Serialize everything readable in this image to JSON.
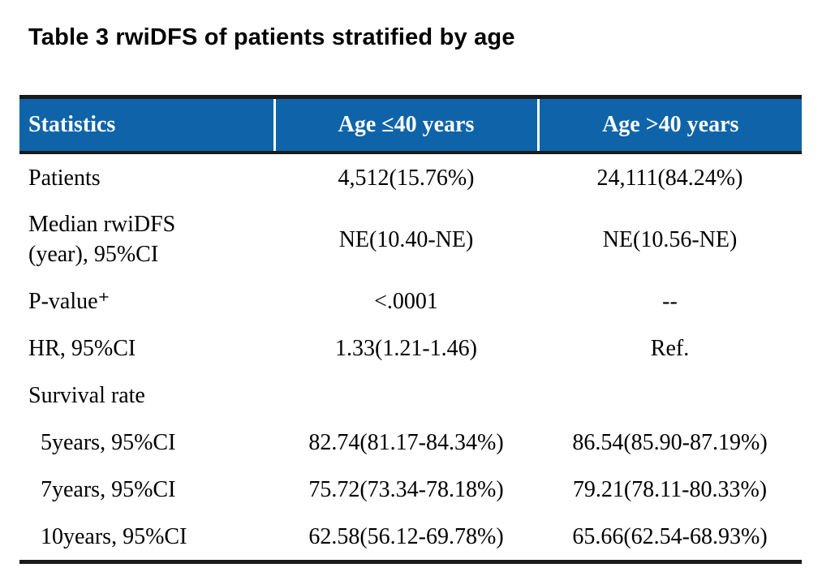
{
  "title": "Table 3 rwiDFS of patients stratified by age",
  "table": {
    "header": {
      "background": "#0F64A9",
      "text_color": "#ffffff",
      "columns": [
        "Statistics",
        "Age ≤40 years",
        "Age >40 years"
      ]
    },
    "rows": [
      {
        "label": "Patients",
        "col1": "4,512(15.76%)",
        "col2": "24,111(84.24%)"
      },
      {
        "label": "Median rwiDFS\n(year), 95%CI",
        "col1": "NE(10.40-NE)",
        "col2": "NE(10.56-NE)"
      },
      {
        "label": "P-value⁺",
        "col1": "<.0001",
        "col2": "--"
      },
      {
        "label": "HR, 95%CI",
        "col1": "1.33(1.21-1.46)",
        "col2": "Ref."
      },
      {
        "label": "Survival rate",
        "col1": "",
        "col2": ""
      },
      {
        "label": "5years, 95%CI",
        "col1": "82.74(81.17-84.34%)",
        "col2": "86.54(85.90-87.19%)"
      },
      {
        "label": "7years, 95%CI",
        "col1": "75.72(73.34-78.18%)",
        "col2": "79.21(78.11-80.33%)"
      },
      {
        "label": "10years, 95%CI",
        "col1": "62.58(56.12-69.78%)",
        "col2": "65.66(62.54-68.93%)"
      }
    ]
  }
}
